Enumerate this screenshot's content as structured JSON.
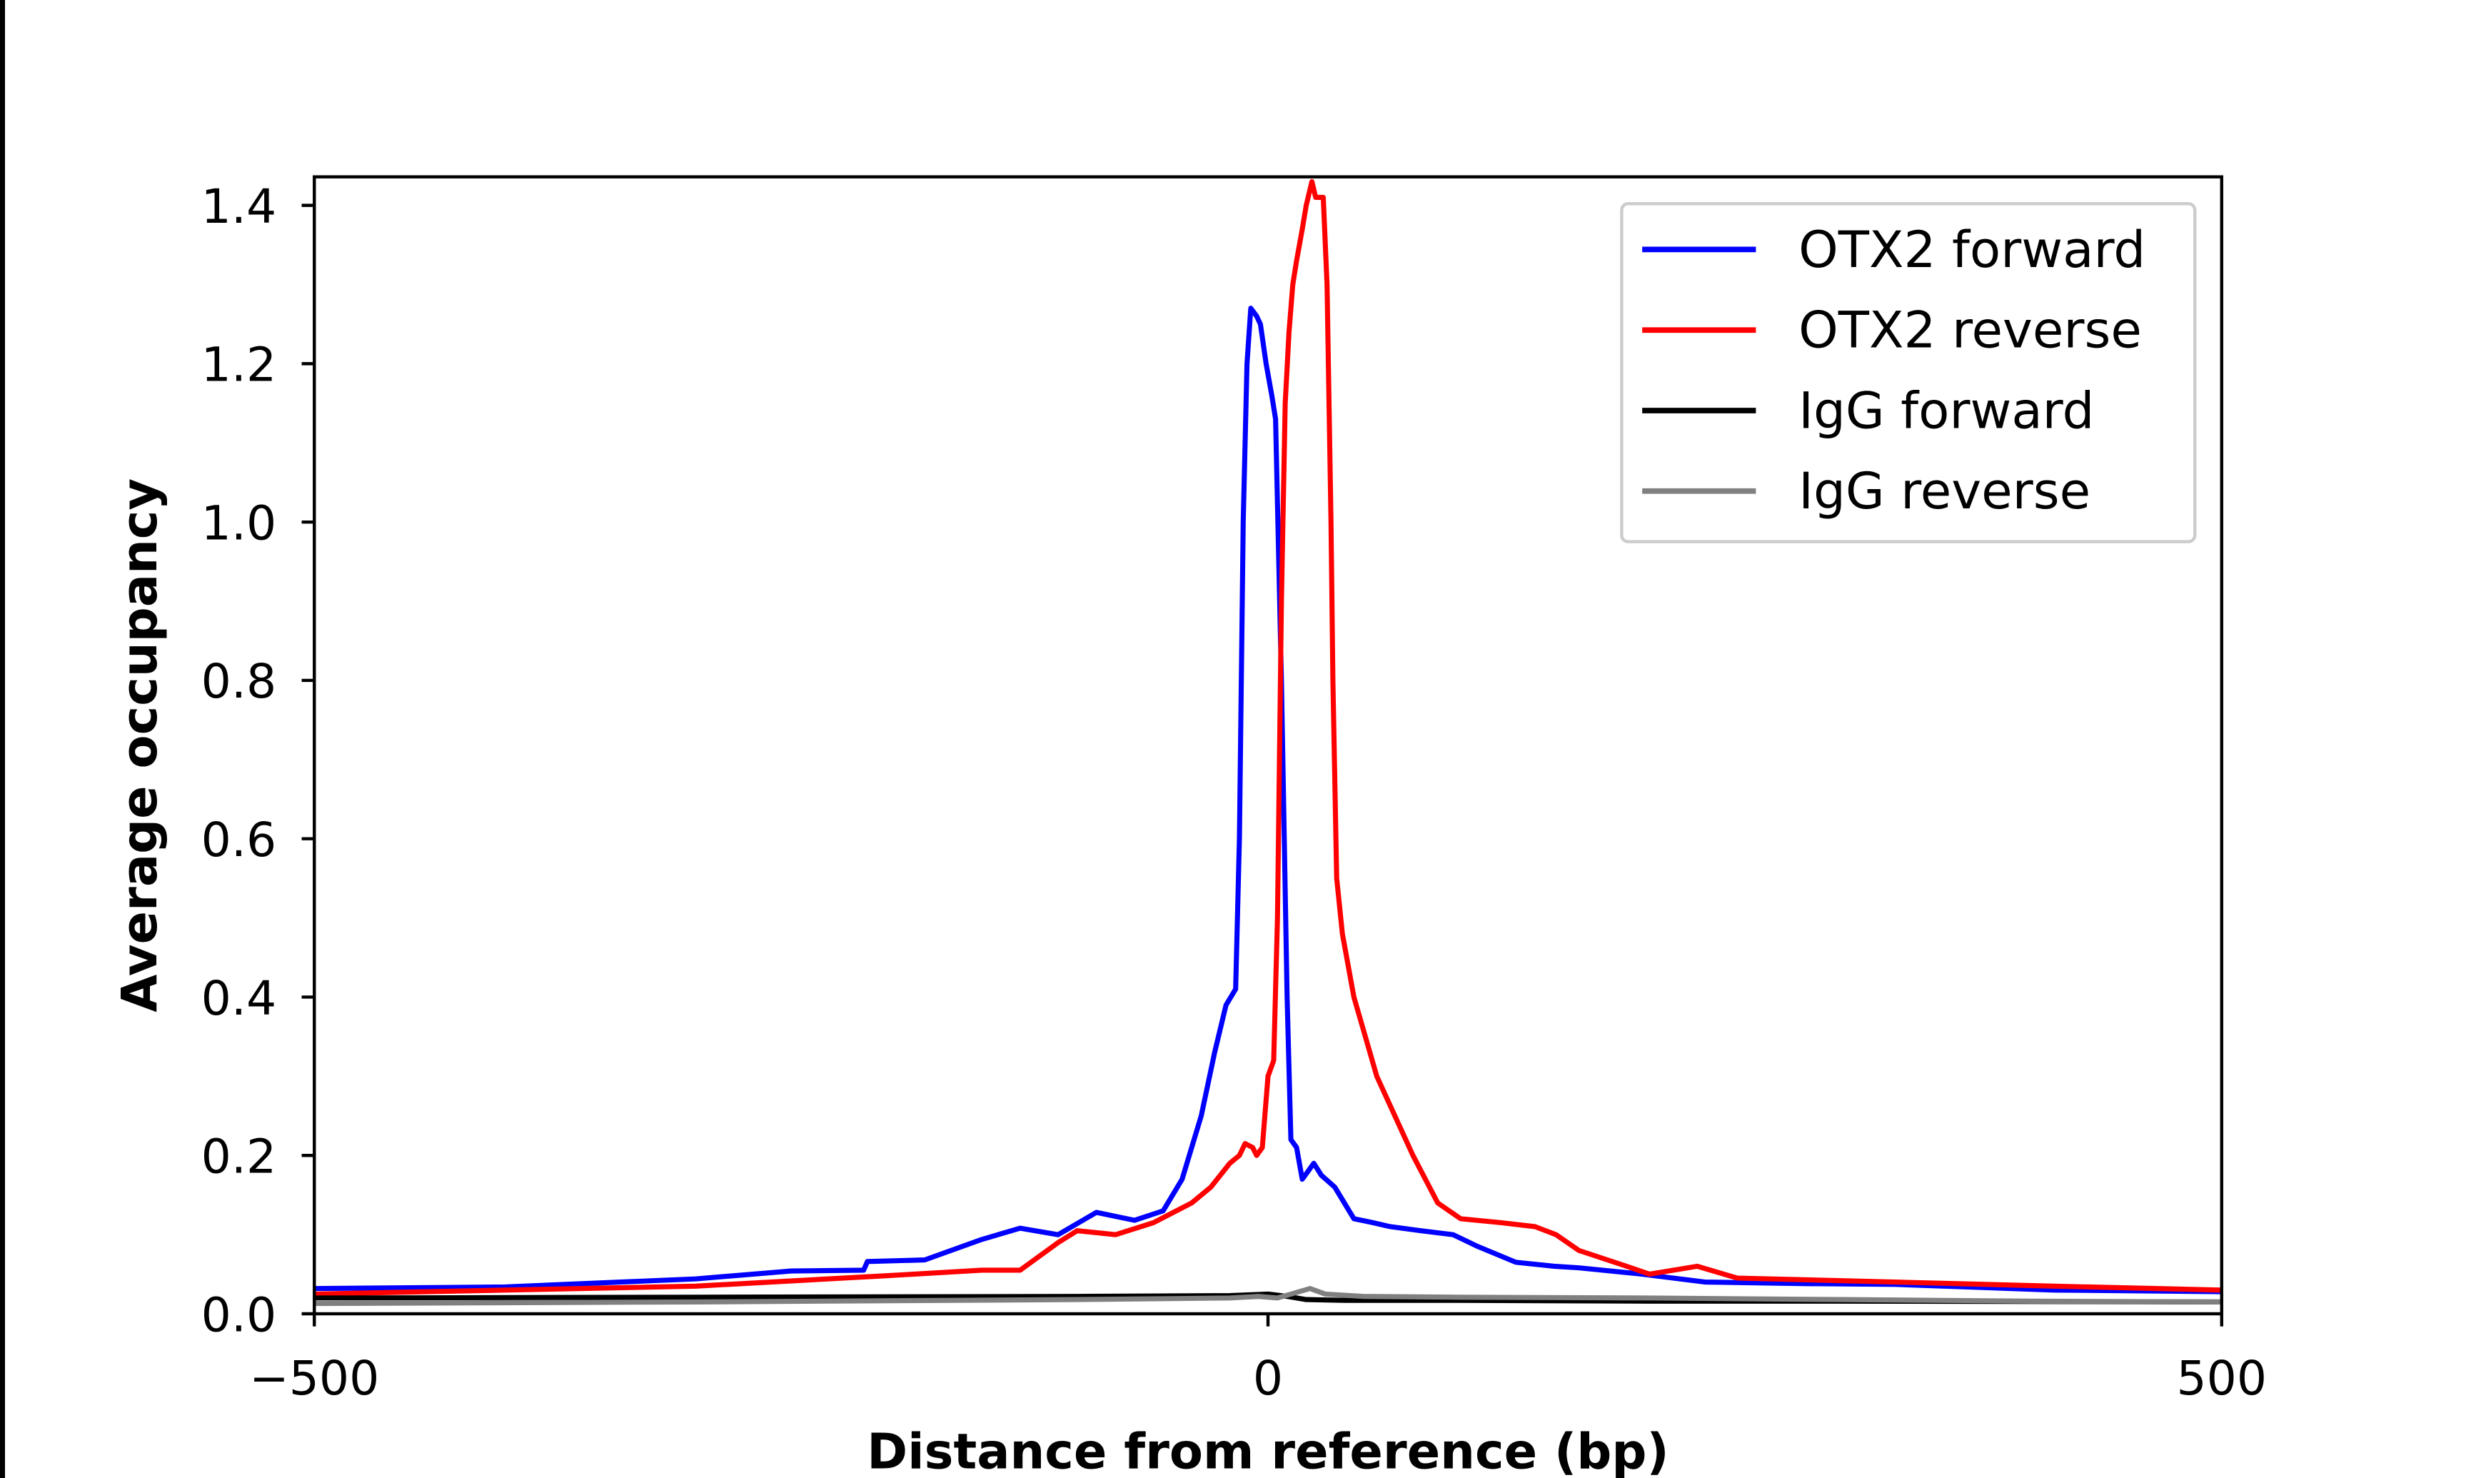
{
  "chart_data": {
    "type": "line",
    "xlabel": "Distance from reference (bp)",
    "ylabel": "Average occupancy",
    "xlim": [
      -500,
      500
    ],
    "ylim": [
      0,
      1.436
    ],
    "xticks": [
      -500,
      0,
      500
    ],
    "xtick_labels": [
      "−500",
      "0",
      "500"
    ],
    "yticks": [
      0.0,
      0.2,
      0.4,
      0.6,
      0.8,
      1.0,
      1.2,
      1.4
    ],
    "ytick_labels": [
      "0.0",
      "0.2",
      "0.4",
      "0.6",
      "0.8",
      "1.0",
      "1.2",
      "1.4"
    ],
    "grid": false,
    "legend_position": "top-right",
    "series": [
      {
        "name": "OTX2 forward",
        "color": "#0000ff",
        "x": [
          -500,
          -400,
          -300,
          -250,
          -212,
          -210,
          -180,
          -150,
          -130,
          -110,
          -90,
          -70,
          -55,
          -45,
          -35,
          -28,
          -22,
          -17,
          -15,
          -13,
          -11,
          -9,
          -6,
          -4,
          -1,
          2,
          4,
          7,
          10,
          12,
          15,
          18,
          21,
          24,
          28,
          35,
          45,
          55,
          64,
          80,
          97,
          110,
          130,
          150,
          163,
          196,
          229,
          280,
          329,
          412,
          500
        ],
        "y": [
          0.032,
          0.034,
          0.044,
          0.054,
          0.055,
          0.066,
          0.068,
          0.094,
          0.108,
          0.1,
          0.128,
          0.118,
          0.13,
          0.17,
          0.25,
          0.33,
          0.39,
          0.41,
          0.6,
          1.0,
          1.2,
          1.27,
          1.26,
          1.25,
          1.2,
          1.16,
          1.13,
          0.8,
          0.4,
          0.22,
          0.21,
          0.17,
          0.18,
          0.19,
          0.175,
          0.16,
          0.12,
          0.115,
          0.11,
          0.105,
          0.1,
          0.085,
          0.065,
          0.06,
          0.058,
          0.05,
          0.04,
          0.038,
          0.037,
          0.03,
          0.028
        ]
      },
      {
        "name": "OTX2 reverse",
        "color": "#ff0000",
        "x": [
          -500,
          -400,
          -300,
          -200,
          -150,
          -130,
          -110,
          -100,
          -80,
          -60,
          -40,
          -30,
          -20,
          -15,
          -12,
          -8,
          -6,
          -3,
          0,
          3,
          5,
          7,
          9,
          11,
          13,
          15,
          18,
          20,
          23,
          25,
          29,
          31,
          33,
          34,
          36,
          39,
          45,
          57,
          76,
          89,
          101,
          122,
          140,
          151,
          163,
          188,
          200,
          225,
          246,
          329,
          412,
          500
        ],
        "y": [
          0.025,
          0.03,
          0.035,
          0.048,
          0.055,
          0.055,
          0.09,
          0.105,
          0.1,
          0.115,
          0.14,
          0.16,
          0.19,
          0.2,
          0.215,
          0.21,
          0.2,
          0.21,
          0.3,
          0.32,
          0.5,
          0.9,
          1.15,
          1.24,
          1.3,
          1.33,
          1.37,
          1.4,
          1.43,
          1.41,
          1.41,
          1.3,
          1.0,
          0.8,
          0.55,
          0.48,
          0.4,
          0.3,
          0.2,
          0.14,
          0.12,
          0.115,
          0.11,
          0.1,
          0.08,
          0.06,
          0.05,
          0.06,
          0.045,
          0.04,
          0.035,
          0.03
        ]
      },
      {
        "name": "IgG forward",
        "color": "#000000",
        "x": [
          -500,
          -300,
          -100,
          -20,
          0,
          10,
          20,
          40,
          100,
          200,
          300,
          500
        ],
        "y": [
          0.02,
          0.021,
          0.022,
          0.023,
          0.025,
          0.022,
          0.018,
          0.017,
          0.017,
          0.016,
          0.016,
          0.015
        ]
      },
      {
        "name": "IgG reverse",
        "color": "#808080",
        "x": [
          -500,
          -300,
          -100,
          -20,
          -5,
          5,
          15,
          22,
          30,
          50,
          100,
          200,
          300,
          400,
          500
        ],
        "y": [
          0.013,
          0.015,
          0.018,
          0.02,
          0.022,
          0.02,
          0.027,
          0.032,
          0.025,
          0.022,
          0.021,
          0.02,
          0.018,
          0.016,
          0.015
        ]
      }
    ]
  }
}
